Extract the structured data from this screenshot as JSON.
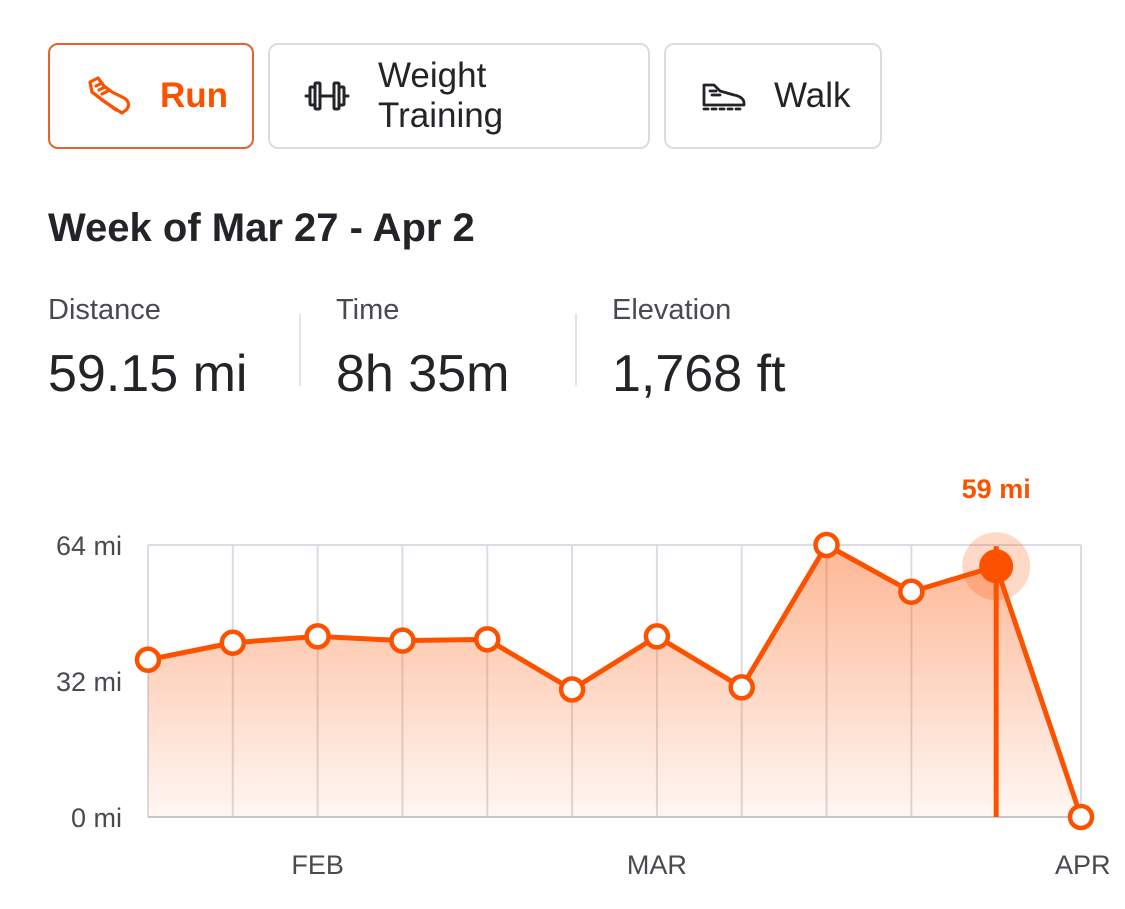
{
  "tabs": [
    {
      "label": "Run",
      "icon": "running-shoe-icon",
      "active": true
    },
    {
      "label": "Weight Training",
      "icon": "dumbbell-icon",
      "active": false
    },
    {
      "label": "Walk",
      "icon": "walking-shoe-icon",
      "active": false
    }
  ],
  "week": {
    "title": "Week of Mar 27 - Apr 2"
  },
  "stats": {
    "distance": {
      "label": "Distance",
      "value": "59.15 mi"
    },
    "time": {
      "label": "Time",
      "value": "8h 35m"
    },
    "elevation": {
      "label": "Elevation",
      "value": "1,768 ft"
    }
  },
  "colors": {
    "accent": "#fc5200",
    "active_border": "#e5622c",
    "grid": "#dcdce4",
    "text": "#242428"
  },
  "chart_data": {
    "type": "area",
    "title": "",
    "xlabel": "",
    "ylabel": "",
    "ylim": [
      0,
      64
    ],
    "ytick_labels": [
      "0 mi",
      "32 mi",
      "64 mi"
    ],
    "ytick_values": [
      0,
      32,
      64
    ],
    "x_month_labels": [
      {
        "label": "FEB",
        "index": 2
      },
      {
        "label": "MAR",
        "index": 6
      },
      {
        "label": "APR",
        "index": 11
      }
    ],
    "series": [
      {
        "values": [
          37,
          41,
          42.5,
          41.5,
          41.8,
          30,
          42.5,
          30.5,
          64,
          53,
          59,
          0
        ]
      }
    ],
    "selected_index": 10,
    "selected_label": "59 mi",
    "grid": true
  }
}
